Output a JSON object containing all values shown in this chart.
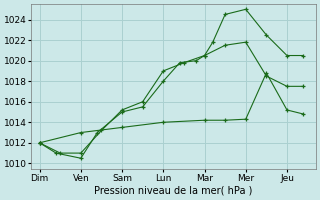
{
  "xlabel": "Pression niveau de la mer( hPa )",
  "background_color": "#cce8e8",
  "grid_color": "#aad0d0",
  "line_color": "#1a6b1a",
  "ylim": [
    1009.5,
    1025.5
  ],
  "yticks": [
    1010,
    1012,
    1014,
    1016,
    1018,
    1020,
    1022,
    1024
  ],
  "x_labels": [
    "Dim",
    "Ven",
    "Sam",
    "Lun",
    "Mar",
    "Mer",
    "Jeu"
  ],
  "x_tick_positions": [
    0,
    1,
    2,
    3,
    4,
    5,
    6
  ],
  "xlim": [
    -0.2,
    6.7
  ],
  "line1_x": [
    0,
    0.4,
    1.0,
    1.4,
    2.0,
    2.5,
    3.0,
    3.4,
    3.8,
    4.0,
    4.2,
    4.5,
    5.0,
    5.5,
    6.0,
    6.4
  ],
  "line1_y": [
    1012,
    1011,
    1010.5,
    1013,
    1015,
    1015.5,
    1018,
    1019.8,
    1020,
    1020.5,
    1021.8,
    1024.5,
    1025,
    1022.5,
    1020.5,
    1020.5
  ],
  "line2_x": [
    0,
    0.5,
    1.0,
    1.5,
    2.0,
    2.5,
    3.0,
    3.5,
    4.0,
    4.5,
    5.0,
    5.5,
    6.0,
    6.4
  ],
  "line2_y": [
    1012,
    1011,
    1011,
    1013.2,
    1015.2,
    1016,
    1019,
    1019.8,
    1020.5,
    1021.5,
    1021.8,
    1018.5,
    1017.5,
    1017.5
  ],
  "line3_x": [
    0,
    1.0,
    2.0,
    3.0,
    4.0,
    4.5,
    5.0,
    5.5,
    6.0,
    6.4
  ],
  "line3_y": [
    1012,
    1013,
    1013.5,
    1014,
    1014.2,
    1014.2,
    1014.3,
    1018.8,
    1015.2,
    1014.8
  ],
  "xlabel_fontsize": 7,
  "tick_fontsize": 6.5
}
